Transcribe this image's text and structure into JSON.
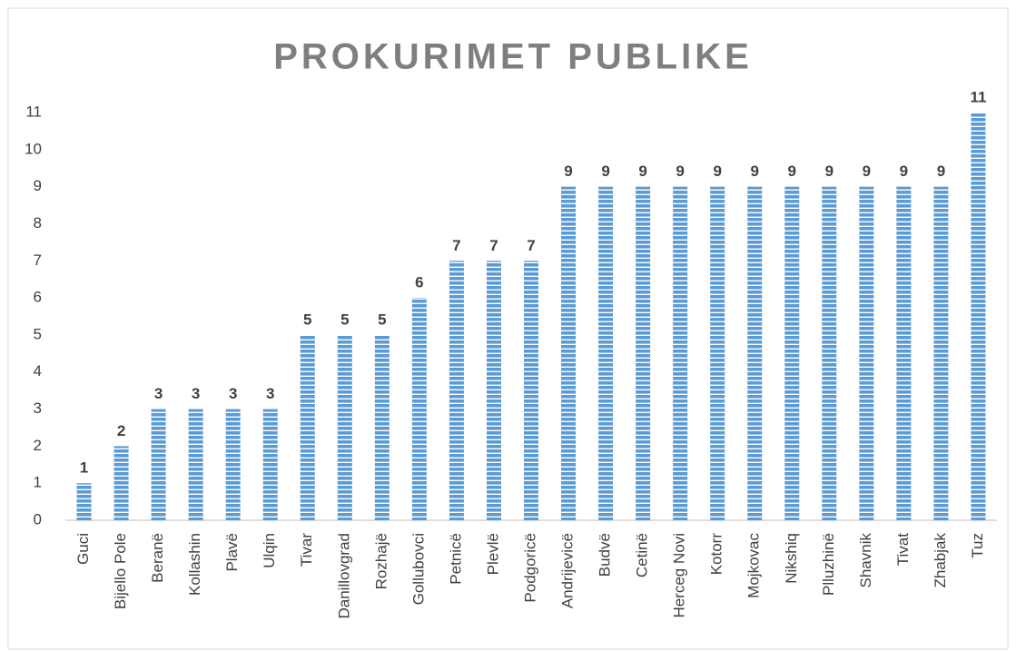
{
  "chart_data": {
    "type": "bar",
    "title": "PROKURIMET PUBLIKE",
    "categories": [
      "Guci",
      "Bijello Pole",
      "Beranë",
      "Kollashin",
      "Plavë",
      "Ulqin",
      "Tivar",
      "Danillovgrad",
      "Rozhajë",
      "Gollubovci",
      "Petnicë",
      "Plevlë",
      "Podgoricë",
      "Andrijevicë",
      "Budvë",
      "Cetinë",
      "Herceg Novi",
      "Kotorr",
      "Mojkovac",
      "Nikshiq",
      "Plluzhinë",
      "Shavnik",
      "Tivat",
      "Zhabjak",
      "Tuz"
    ],
    "values": [
      1,
      2,
      3,
      3,
      3,
      3,
      5,
      5,
      5,
      6,
      7,
      7,
      7,
      9,
      9,
      9,
      9,
      9,
      9,
      9,
      9,
      9,
      9,
      9,
      11
    ],
    "color": "#5b9bd5",
    "ylim": [
      0,
      11
    ],
    "yticks": [
      0,
      1,
      2,
      3,
      4,
      5,
      6,
      7,
      8,
      9,
      10,
      11
    ],
    "grid": false
  }
}
